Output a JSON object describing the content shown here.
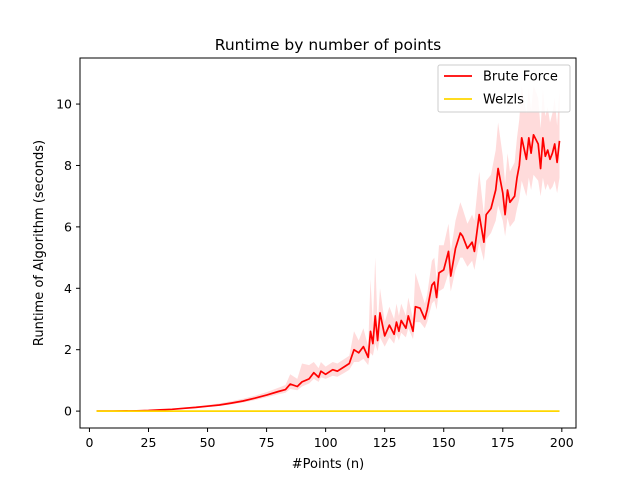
{
  "chart_data": {
    "type": "line",
    "title": "Runtime by number of points",
    "xlabel": "#Points (n)",
    "ylabel": "Runtime of Algorithm (seconds)",
    "xlim": [
      -4,
      206
    ],
    "ylim": [
      -0.55,
      11.5
    ],
    "xticks": [
      0,
      25,
      50,
      75,
      100,
      125,
      150,
      175,
      200
    ],
    "yticks": [
      0,
      2,
      4,
      6,
      8,
      10
    ],
    "grid": false,
    "legend_position": "top-right",
    "series": [
      {
        "name": "Brute Force",
        "color": "#ff0000",
        "band_color": "#ffcccc",
        "x": [
          3,
          10,
          20,
          25,
          30,
          35,
          40,
          45,
          50,
          55,
          60,
          65,
          70,
          75,
          80,
          83,
          85,
          88,
          90,
          93,
          95,
          97,
          98,
          100,
          103,
          105,
          108,
          110,
          112,
          114,
          116,
          118,
          119,
          120,
          121,
          122,
          123,
          125,
          127,
          129,
          130,
          131,
          132,
          134,
          135,
          137,
          138,
          140,
          142,
          143,
          145,
          146,
          147,
          148,
          150,
          152,
          153,
          155,
          157,
          158,
          160,
          162,
          163,
          165,
          167,
          168,
          170,
          172,
          173,
          175,
          176,
          177,
          178,
          180,
          181,
          182,
          183,
          185,
          186,
          187,
          188,
          190,
          191,
          192,
          193,
          194,
          195,
          196,
          197,
          198,
          199
        ],
        "values": [
          0.0,
          0.0,
          0.01,
          0.02,
          0.04,
          0.06,
          0.09,
          0.12,
          0.16,
          0.2,
          0.26,
          0.33,
          0.42,
          0.52,
          0.64,
          0.7,
          0.88,
          0.8,
          0.95,
          1.05,
          1.25,
          1.1,
          1.3,
          1.2,
          1.35,
          1.3,
          1.45,
          1.55,
          2.0,
          1.9,
          2.1,
          1.75,
          2.6,
          2.2,
          3.1,
          2.3,
          3.2,
          2.45,
          2.8,
          2.5,
          2.9,
          2.6,
          2.95,
          2.7,
          3.1,
          2.6,
          3.4,
          3.35,
          3.0,
          3.3,
          4.1,
          4.2,
          3.7,
          4.5,
          4.6,
          5.2,
          4.4,
          5.3,
          5.8,
          5.7,
          5.3,
          5.5,
          5.2,
          6.4,
          5.5,
          6.4,
          6.6,
          7.2,
          7.9,
          7.1,
          6.4,
          7.2,
          6.8,
          7.0,
          7.6,
          8.0,
          8.9,
          8.2,
          8.9,
          8.4,
          9.0,
          8.7,
          7.9,
          8.9,
          8.3,
          8.5,
          8.2,
          8.4,
          8.7,
          8.1,
          8.8
        ],
        "lower": [
          0.0,
          0.0,
          0.0,
          0.01,
          0.03,
          0.05,
          0.07,
          0.1,
          0.13,
          0.17,
          0.22,
          0.28,
          0.36,
          0.45,
          0.55,
          0.6,
          0.72,
          0.68,
          0.8,
          0.9,
          1.05,
          0.95,
          1.1,
          1.05,
          1.15,
          1.12,
          1.25,
          1.35,
          1.6,
          1.6,
          1.7,
          1.5,
          1.9,
          1.8,
          2.2,
          1.95,
          2.4,
          2.1,
          2.4,
          2.2,
          2.5,
          2.3,
          2.55,
          2.4,
          2.7,
          2.35,
          2.9,
          2.9,
          2.7,
          2.9,
          3.5,
          3.6,
          3.3,
          3.9,
          4.0,
          4.5,
          3.9,
          4.6,
          5.0,
          5.0,
          4.7,
          4.9,
          4.6,
          5.5,
          4.9,
          5.6,
          5.8,
          6.2,
          6.7,
          6.2,
          5.7,
          6.3,
          6.0,
          6.2,
          6.6,
          6.9,
          7.5,
          7.0,
          7.6,
          7.2,
          7.7,
          7.5,
          7.0,
          7.6,
          7.2,
          7.4,
          7.2,
          7.3,
          7.5,
          7.1,
          7.6
        ],
        "upper": [
          0.01,
          0.01,
          0.03,
          0.04,
          0.06,
          0.08,
          0.12,
          0.15,
          0.2,
          0.25,
          0.32,
          0.4,
          0.5,
          0.62,
          0.76,
          0.85,
          1.2,
          1.05,
          1.55,
          1.5,
          1.6,
          1.4,
          1.6,
          1.45,
          1.6,
          1.55,
          1.7,
          1.8,
          2.6,
          2.3,
          2.7,
          2.1,
          4.3,
          2.8,
          5.0,
          2.8,
          4.0,
          2.9,
          3.4,
          3.0,
          3.5,
          3.1,
          3.5,
          3.1,
          3.7,
          3.0,
          4.5,
          4.0,
          3.5,
          3.8,
          4.9,
          5.0,
          4.3,
          5.4,
          5.4,
          6.1,
          5.2,
          6.2,
          6.8,
          6.6,
          6.1,
          6.4,
          6.2,
          7.8,
          6.4,
          7.5,
          7.7,
          8.5,
          9.4,
          8.3,
          7.4,
          8.4,
          7.8,
          8.1,
          8.9,
          9.5,
          10.6,
          9.7,
          10.5,
          9.8,
          10.6,
          10.2,
          9.2,
          10.5,
          9.6,
          9.9,
          9.4,
          9.7,
          10.2,
          9.3,
          10.5
        ]
      },
      {
        "name": "Welzls",
        "color": "#ffd700",
        "x": [
          3,
          50,
          100,
          150,
          199
        ],
        "values": [
          0.0,
          0.0,
          0.0,
          0.0,
          0.0
        ]
      }
    ]
  }
}
